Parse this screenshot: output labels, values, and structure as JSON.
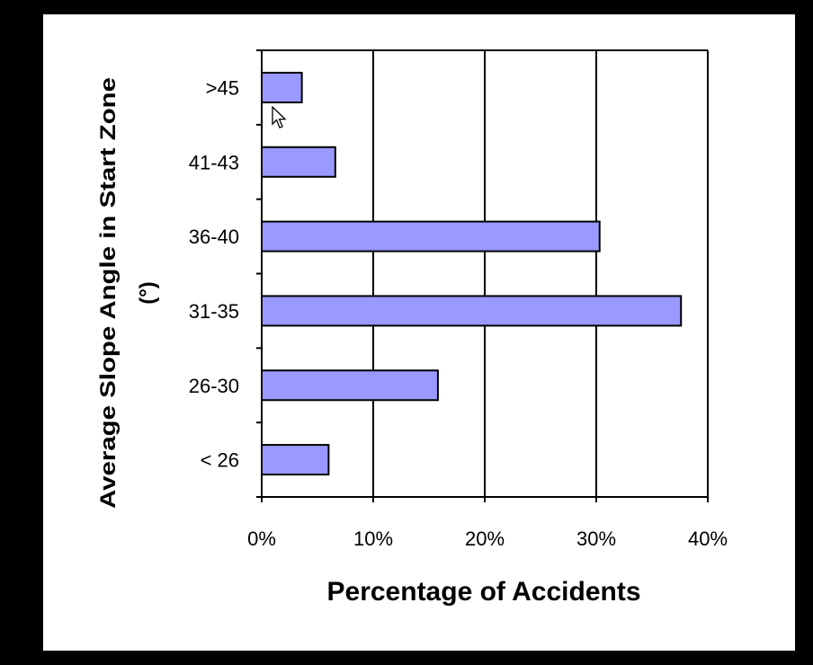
{
  "chart_data": {
    "type": "bar",
    "orientation": "horizontal",
    "categories": [
      "< 26",
      "26-30",
      "31-35",
      "36-40",
      "41-43",
      ">45"
    ],
    "values": [
      6,
      15.8,
      37.6,
      30.3,
      6.6,
      3.6
    ],
    "xlim": [
      0,
      40
    ],
    "x_ticks": [
      "0%",
      "10%",
      "20%",
      "30%",
      "40%"
    ],
    "xlabel": "Percentage of Accidents",
    "ylabel_line1": "Average Slope Angle in Start Zone",
    "ylabel_line2": "(°)",
    "grid": true,
    "colors": {
      "bar_fill": "#9999ff",
      "bar_stroke": "#000000",
      "background": "#ffffff",
      "frame": "#000000"
    }
  }
}
